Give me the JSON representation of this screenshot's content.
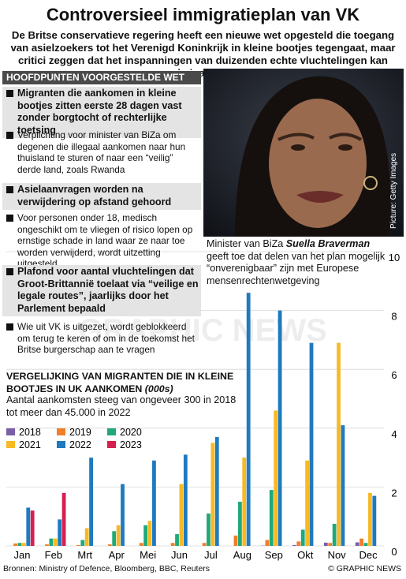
{
  "header": {
    "title": "Controversieel immigratieplan van VK",
    "subtitle": "De Britse conservatieve regering heeft een nieuwe wet opgesteld die toegang van asielzoekers tot het Verenigd Koninkrijk in kleine bootjes tegengaat, maar critici zeggen dat het inspanningen van duizenden echte vluchtelingen kan criminaliseren"
  },
  "key_points": {
    "heading": "HOOFDPUNTEN VOORGESTELDE WET",
    "items": [
      {
        "text": "Migranten die aankomen in kleine bootjes zitten eerste 28 dagen vast zonder borgtocht of rechterlijke toetsing",
        "bold": true
      },
      {
        "text": "Verplichting voor minister van BiZa om degenen die illegaal aankomen naar hun thuisland te sturen of naar een “veilig” derde land, zoals Rwanda",
        "bold": false
      },
      {
        "text": "Asielaanvragen worden  na verwijdering op afstand gehoord",
        "bold": true
      },
      {
        "text": "Voor personen onder 18, medisch ongeschikt om te vliegen of risico lopen op ernstige schade in land waar ze naar toe worden verwijderd, wordt uitzetting uitgesteld",
        "bold": false
      },
      {
        "text": "Plafond voor aantal vluchtelingen dat Groot-Brittannië toelaat via “veilige en legale routes”, jaarlijks door het Parlement bepaald",
        "bold": true
      },
      {
        "text": "Wie uit VK is uitgezet, wordt geblokkeerd om terug te keren of om in de toekomst het Britse burgerschap aan te vragen",
        "bold": false
      }
    ]
  },
  "photo": {
    "credit": "Picture: Getty Images",
    "caption_before": "Minister van BiZa ",
    "caption_name": "Suella Braverman",
    "caption_after": " geeft toe dat delen van het plan mogelijk “onverenigbaar” zijn met Europese mensenrechtenwetgeving"
  },
  "watermark": "GRAPHIC NEWS",
  "chart_data": {
    "type": "bar",
    "title": "VERGELIJKING VAN MIGRANTEN DIE IN KLEINE BOOTJES IN UK AANKOMEN",
    "unit": "(000s)",
    "subtitle": "Aantal aankomsten steeg van ongeveer 300 in 2018 tot meer dan 45.000 in 2022",
    "categories": [
      "Jan",
      "Feb",
      "Mrt",
      "Apr",
      "Mei",
      "Jun",
      "Jul",
      "Aug",
      "Sep",
      "Okt",
      "Nov",
      "Dec"
    ],
    "series": [
      {
        "name": "2018",
        "color": "#7b5ea7",
        "values": [
          0,
          0,
          0,
          0,
          0,
          0,
          0,
          0,
          0.01,
          0.03,
          0.11,
          0.12
        ]
      },
      {
        "name": "2019",
        "color": "#f07f2a",
        "values": [
          0.08,
          0.05,
          0.03,
          0.05,
          0.1,
          0.1,
          0.1,
          0.35,
          0.2,
          0.15,
          0.1,
          0.25
        ]
      },
      {
        "name": "2020",
        "color": "#1fa97a",
        "values": [
          0.1,
          0.25,
          0.2,
          0.5,
          0.7,
          0.4,
          1.1,
          1.5,
          1.9,
          0.55,
          0.75,
          0.1
        ]
      },
      {
        "name": "2021",
        "color": "#f7b924",
        "values": [
          0.1,
          0.25,
          0.6,
          0.7,
          0.85,
          2.1,
          3.5,
          3.0,
          4.6,
          2.9,
          6.9,
          1.8
        ]
      },
      {
        "name": "2022",
        "color": "#1f7ac0",
        "values": [
          1.3,
          0.9,
          3.0,
          2.1,
          2.9,
          3.1,
          3.7,
          8.6,
          8.0,
          6.9,
          4.1,
          1.7
        ]
      },
      {
        "name": "2023",
        "color": "#d61f4f",
        "values": [
          1.2,
          1.8,
          null,
          null,
          null,
          null,
          null,
          null,
          null,
          null,
          null,
          null
        ]
      }
    ],
    "ylim": [
      0,
      10
    ],
    "yticks": [
      0,
      2,
      4,
      6,
      8,
      10
    ],
    "grid": true
  },
  "footer": {
    "sources": "Bronnen: Ministry of Defence, Bloomberg, BBC, Reuters",
    "copyright": "© GRAPHIC NEWS"
  }
}
